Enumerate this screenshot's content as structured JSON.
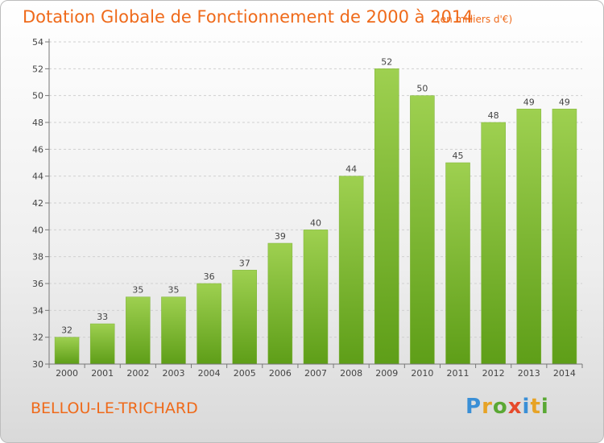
{
  "header": {
    "title": "Dotation Globale de Fonctionnement de 2000 à 2014",
    "subtitle": "(en milliers d'€)"
  },
  "footer": {
    "place": "BELLOU-LE-TRICHARD",
    "logo_text": "Proxiti",
    "logo_colors": [
      "#3a8fd6",
      "#e7a326",
      "#5aa834",
      "#e64a2b",
      "#3a8fd6",
      "#e7a326",
      "#5aa834"
    ]
  },
  "colors": {
    "bar_light": "#9ed050",
    "bar_dark": "#5e9e18",
    "accent": "#ef6a1a"
  },
  "chart_data": {
    "type": "bar",
    "categories": [
      "2000",
      "2001",
      "2002",
      "2003",
      "2004",
      "2005",
      "2006",
      "2007",
      "2008",
      "2009",
      "2010",
      "2011",
      "2012",
      "2013",
      "2014"
    ],
    "values": [
      32,
      33,
      35,
      35,
      36,
      37,
      39,
      40,
      44,
      52,
      50,
      45,
      48,
      49,
      49
    ],
    "title": "Dotation Globale de Fonctionnement de 2000 à 2014",
    "subtitle": "(en milliers d'€)",
    "ylim": [
      30,
      54
    ],
    "yticks": [
      30,
      32,
      34,
      36,
      38,
      40,
      42,
      44,
      46,
      48,
      50,
      52,
      54
    ],
    "grid": true
  }
}
